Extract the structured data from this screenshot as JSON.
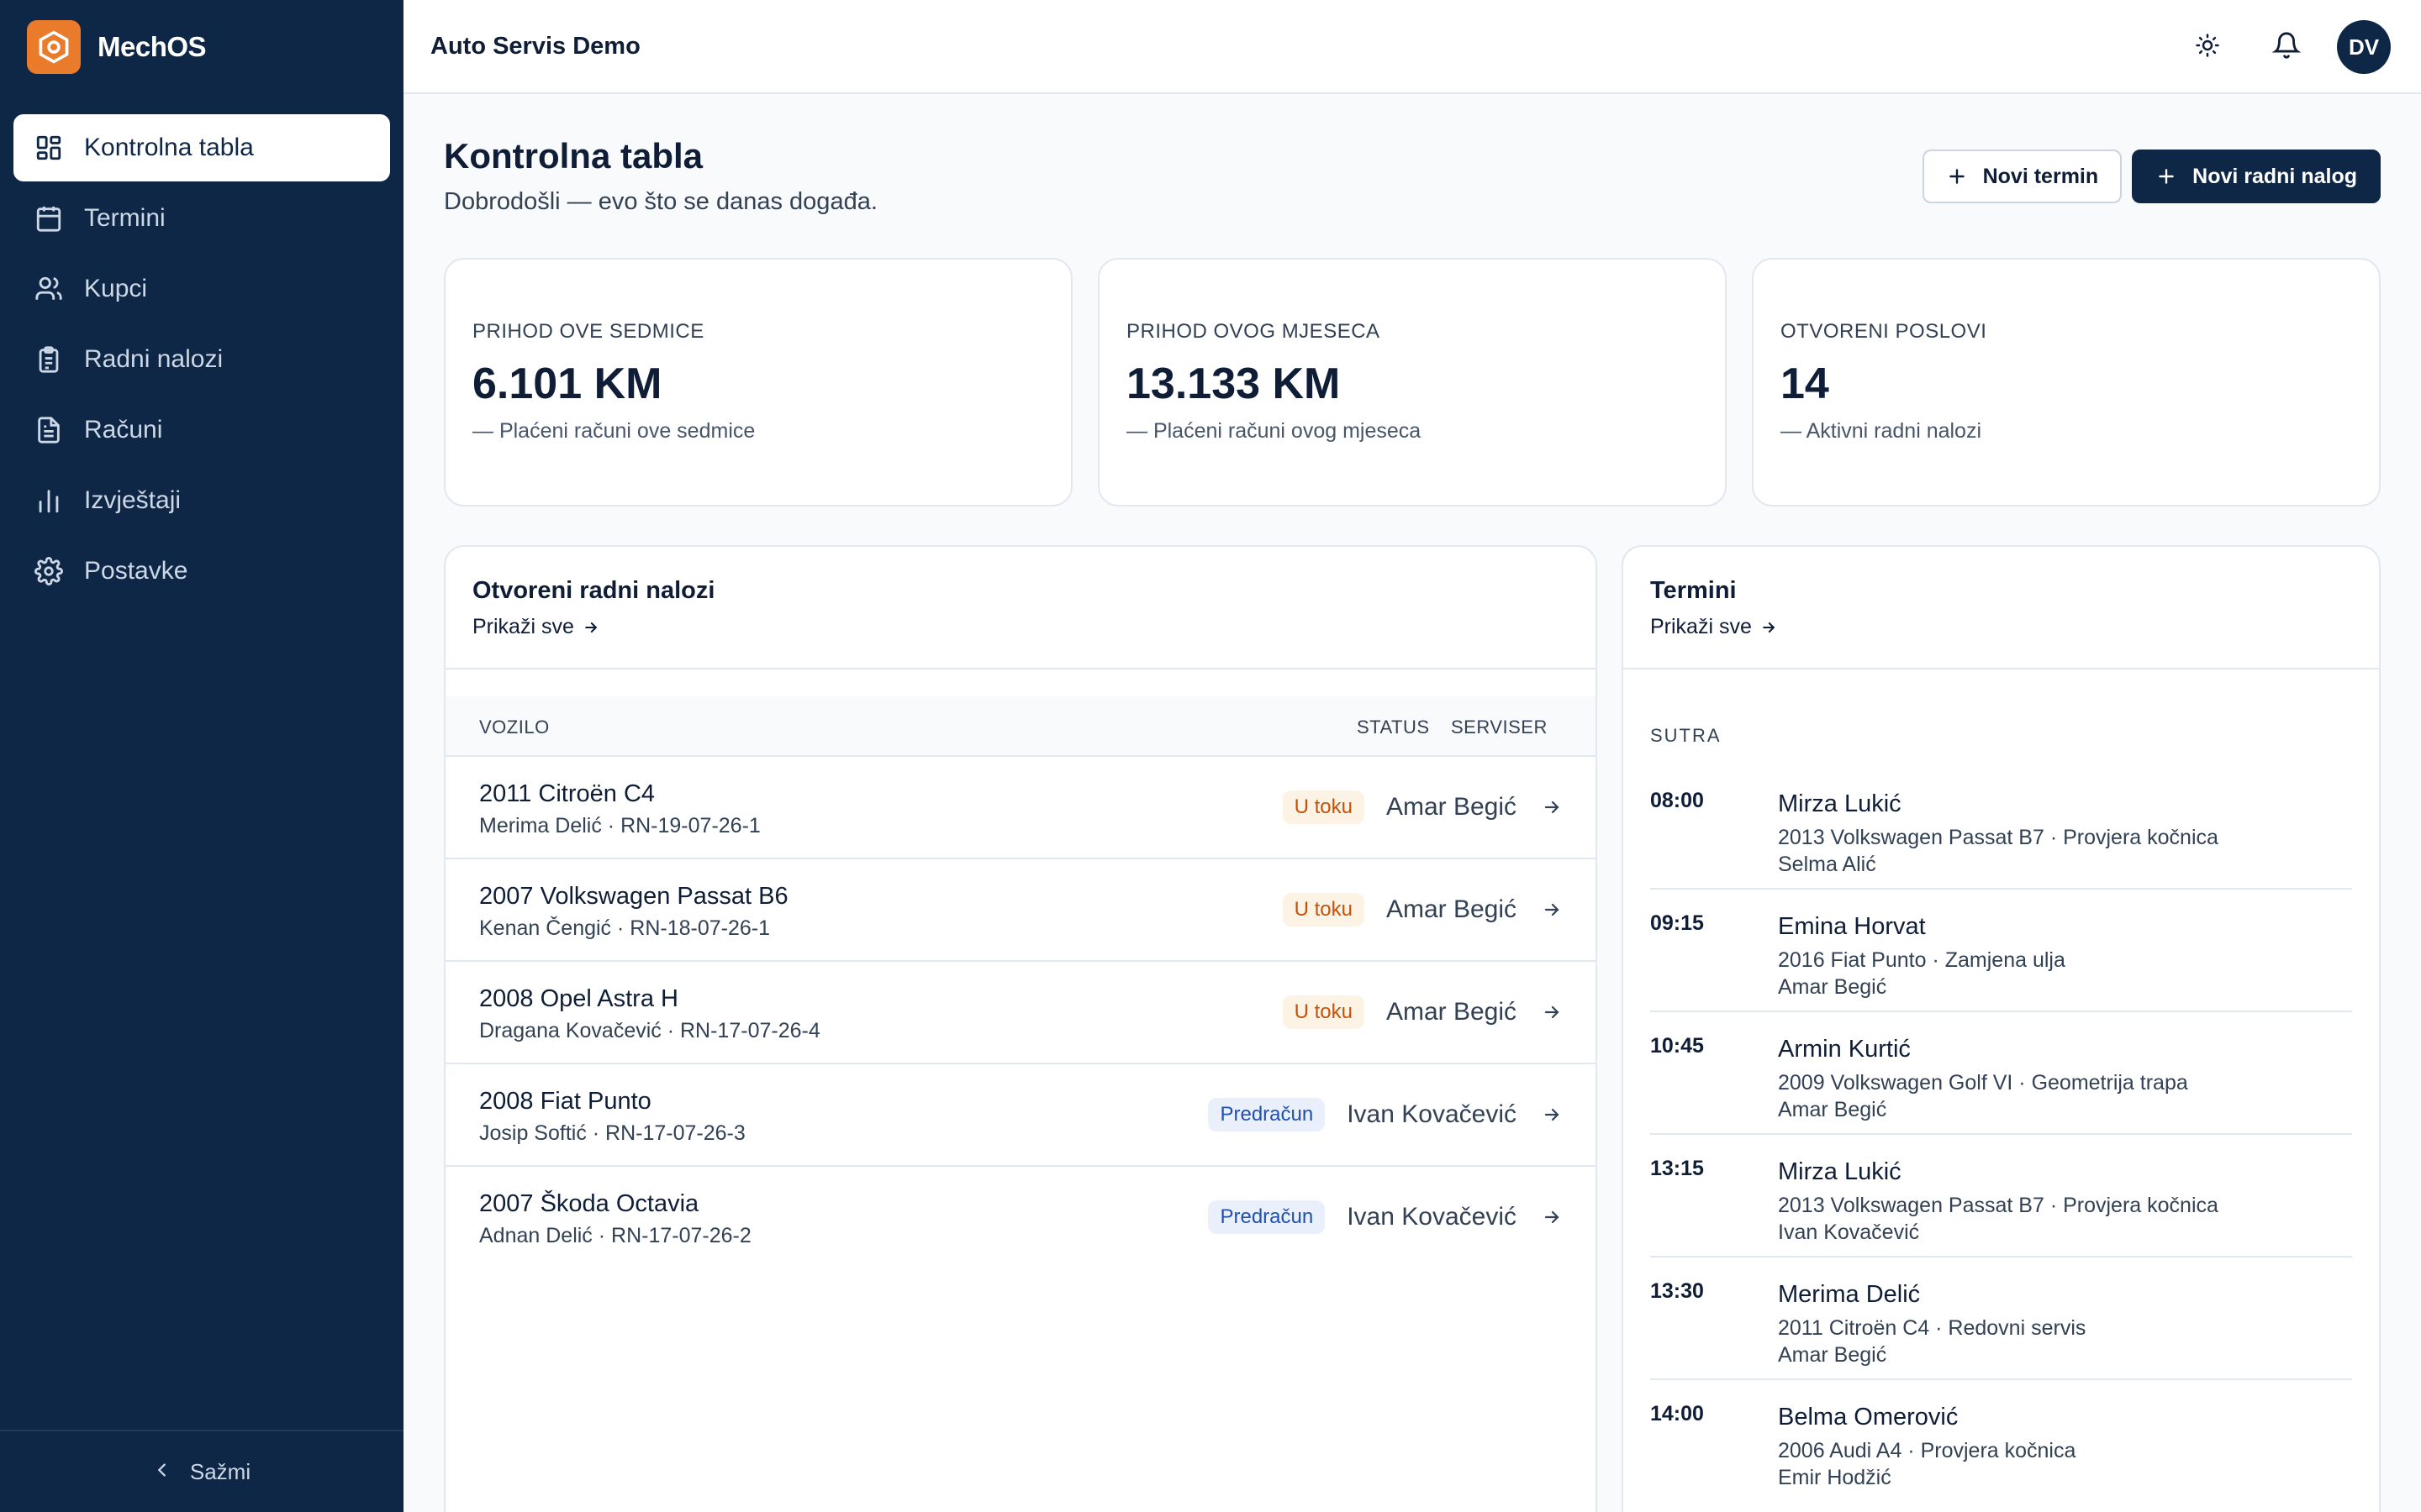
{
  "brand": {
    "name": "MechOS"
  },
  "sidebar": {
    "items": [
      {
        "label": "Kontrolna tabla",
        "icon": "dashboard-icon",
        "active": true
      },
      {
        "label": "Termini",
        "icon": "calendar-icon"
      },
      {
        "label": "Kupci",
        "icon": "users-icon"
      },
      {
        "label": "Radni nalozi",
        "icon": "clipboard-icon"
      },
      {
        "label": "Računi",
        "icon": "invoice-icon"
      },
      {
        "label": "Izvještaji",
        "icon": "bar-chart-icon"
      },
      {
        "label": "Postavke",
        "icon": "gear-icon"
      }
    ],
    "collapse_label": "Sažmi"
  },
  "header": {
    "title": "Auto Servis Demo",
    "avatar_initials": "DV"
  },
  "page": {
    "title": "Kontrolna tabla",
    "subtitle": "Dobrodošli — evo što se danas događa.",
    "new_appointment_label": "Novi termin",
    "new_work_order_label": "Novi radni nalog"
  },
  "stats": [
    {
      "label": "PRIHOD OVE SEDMICE",
      "value": "6.101 KM",
      "note": "Plaćeni računi ove sedmice"
    },
    {
      "label": "PRIHOD OVOG MJESECA",
      "value": "13.133 KM",
      "note": "Plaćeni računi ovog mjeseca"
    },
    {
      "label": "OTVORENI POSLOVI",
      "value": "14",
      "note": "Aktivni radni nalozi"
    }
  ],
  "orders": {
    "title": "Otvoreni radni nalozi",
    "show_all": "Prikaži sve",
    "columns": {
      "vehicle": "VOZILO",
      "status": "STATUS",
      "technician": "SERVISER"
    },
    "rows": [
      {
        "vehicle": "2011 Citroën C4",
        "sub": "Merima Delić · RN-19-07-26-1",
        "status": "U toku",
        "status_kind": "progress",
        "technician": "Amar Begić"
      },
      {
        "vehicle": "2007 Volkswagen Passat B6",
        "sub": "Kenan Čengić · RN-18-07-26-1",
        "status": "U toku",
        "status_kind": "progress",
        "technician": "Amar Begić"
      },
      {
        "vehicle": "2008 Opel Astra H",
        "sub": "Dragana Kovačević · RN-17-07-26-4",
        "status": "U toku",
        "status_kind": "progress",
        "technician": "Amar Begić"
      },
      {
        "vehicle": "2008 Fiat Punto",
        "sub": "Josip Softić · RN-17-07-26-3",
        "status": "Predračun",
        "status_kind": "estimate",
        "technician": "Ivan Kovačević"
      },
      {
        "vehicle": "2007 Škoda Octavia",
        "sub": "Adnan Delić · RN-17-07-26-2",
        "status": "Predračun",
        "status_kind": "estimate",
        "technician": "Ivan Kovačević"
      }
    ]
  },
  "appointments": {
    "title": "Termini",
    "show_all": "Prikaži sve",
    "day_label": "SUTRA",
    "items": [
      {
        "time": "08:00",
        "name": "Mirza Lukić",
        "detail": "2013 Volkswagen Passat B7 · Provjera kočnica",
        "technician": "Selma Alić"
      },
      {
        "time": "09:15",
        "name": "Emina Horvat",
        "detail": "2016 Fiat Punto · Zamjena ulja",
        "technician": "Amar Begić"
      },
      {
        "time": "10:45",
        "name": "Armin Kurtić",
        "detail": "2009 Volkswagen Golf VI · Geometrija trapa",
        "technician": "Amar Begić"
      },
      {
        "time": "13:15",
        "name": "Mirza Lukić",
        "detail": "2013 Volkswagen Passat B7 · Provjera kočnica",
        "technician": "Ivan Kovačević"
      },
      {
        "time": "13:30",
        "name": "Merima Delić",
        "detail": "2011 Citroën C4 · Redovni servis",
        "technician": "Amar Begić"
      },
      {
        "time": "14:00",
        "name": "Belma Omerović",
        "detail": "2006 Audi A4 · Provjera kočnica",
        "technician": "Emir Hodžić"
      }
    ]
  },
  "colors": {
    "sidebar": "#0f2746",
    "brand_accent": "#ea7b2a",
    "status_progress": "#c2520c",
    "status_estimate": "#2050b0"
  }
}
